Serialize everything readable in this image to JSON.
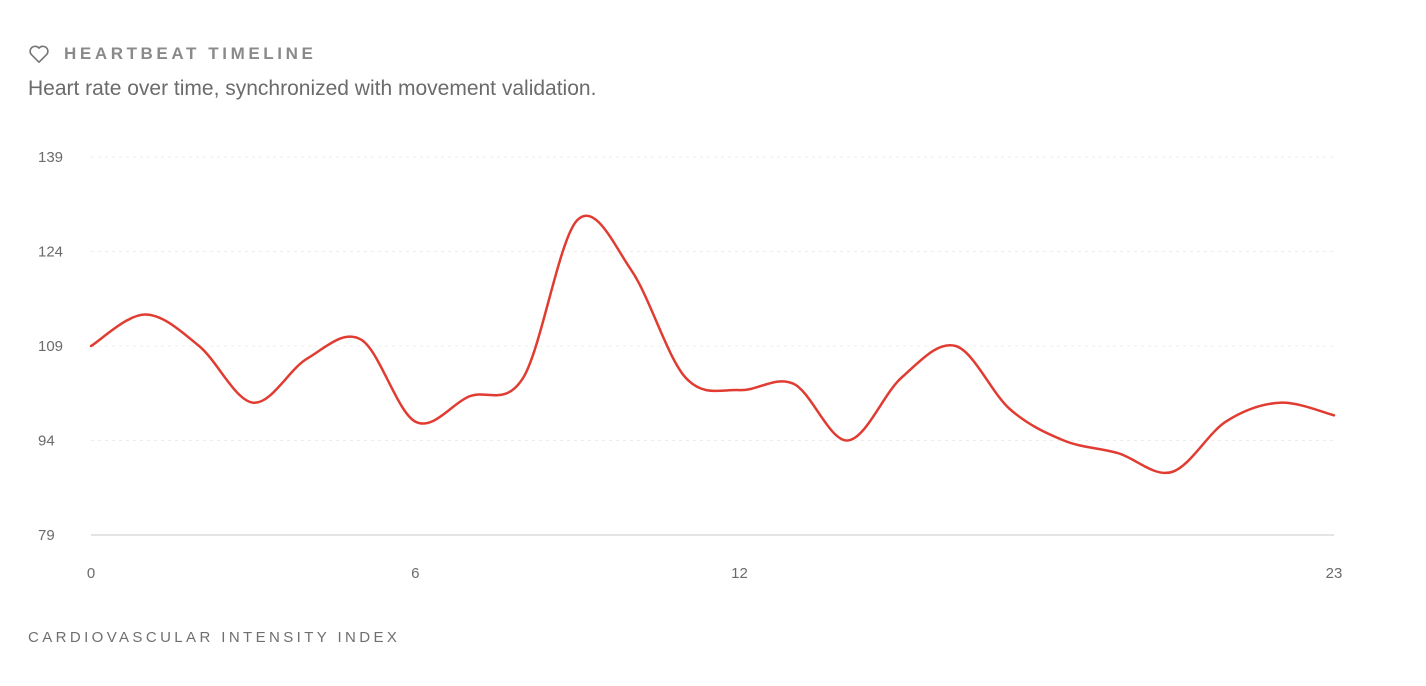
{
  "chart_data": {
    "type": "line",
    "title": "HEARTBEAT TIMELINE",
    "subtitle": "Heart rate over time, synchronized with movement validation.",
    "footer": "CARDIOVASCULAR INTENSITY INDEX",
    "x": [
      0,
      1,
      2,
      3,
      4,
      5,
      6,
      7,
      8,
      9,
      10,
      11,
      12,
      13,
      14,
      15,
      16,
      17,
      18,
      19,
      20,
      21,
      22,
      23
    ],
    "values": [
      109,
      114,
      109,
      100,
      107,
      110,
      97,
      101,
      104,
      129,
      121,
      104,
      102,
      103,
      94,
      104,
      109,
      99,
      94,
      92,
      89,
      97,
      100,
      98
    ],
    "color": "#e03c31",
    "xlim": [
      0,
      23
    ],
    "xticks": [
      0,
      6,
      12,
      23
    ],
    "ylim": [
      79,
      139
    ],
    "yticks": [
      79,
      94,
      109,
      124,
      139
    ],
    "grid": true
  }
}
